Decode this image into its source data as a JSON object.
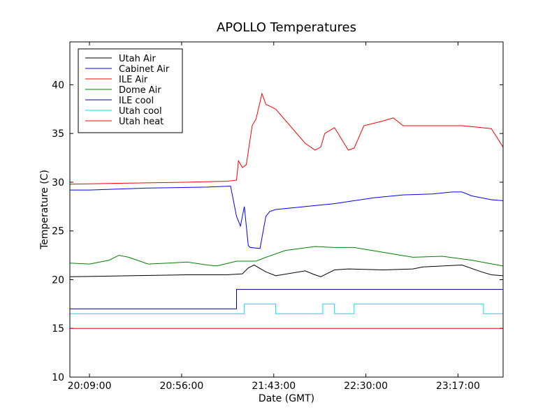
{
  "chart_data": {
    "type": "line",
    "title": "APOLLO Temperatures",
    "xlabel": "Date (GMT)",
    "ylabel": "Temperature (C)",
    "xlim": [
      -10,
      211
    ],
    "ylim": [
      10,
      44.4
    ],
    "yticks": [
      10,
      15,
      20,
      25,
      30,
      35,
      40
    ],
    "xticks": [
      {
        "pos": 0,
        "label": "20:09:00"
      },
      {
        "pos": 47,
        "label": "20:56:00"
      },
      {
        "pos": 94,
        "label": "21:43:00"
      },
      {
        "pos": 141,
        "label": "22:30:00"
      },
      {
        "pos": 188,
        "label": "23:17:00"
      }
    ],
    "legend_position": "top-left",
    "series": [
      {
        "name": "Utah Air",
        "color": "#000000",
        "x": [
          -10,
          20,
          50,
          70,
          78,
          81,
          84,
          90,
          95,
          110,
          115,
          118,
          121,
          125,
          132,
          150,
          165,
          170,
          180,
          190,
          200,
          205,
          211
        ],
        "y": [
          20.3,
          20.4,
          20.5,
          20.5,
          20.6,
          21.2,
          21.5,
          20.8,
          20.4,
          20.9,
          20.5,
          20.3,
          20.6,
          21.0,
          21.1,
          21.0,
          21.1,
          21.3,
          21.4,
          21.5,
          20.8,
          20.5,
          20.4
        ]
      },
      {
        "name": "Cabinet Air",
        "color": "#0000ff",
        "x": [
          -10,
          0,
          30,
          60,
          72,
          75,
          77,
          79,
          81,
          82,
          87,
          90,
          92,
          95,
          105,
          115,
          125,
          135,
          145,
          160,
          175,
          185,
          190,
          195,
          205,
          211
        ],
        "y": [
          29.2,
          29.2,
          29.4,
          29.5,
          29.6,
          26.5,
          25.5,
          27.5,
          23.5,
          23.3,
          23.2,
          26.5,
          27.0,
          27.2,
          27.4,
          27.6,
          27.8,
          28.1,
          28.4,
          28.7,
          28.8,
          29.0,
          29.0,
          28.6,
          28.2,
          28.1
        ]
      },
      {
        "name": "ILE Air",
        "color": "#ff0000",
        "x": [
          -10,
          20,
          50,
          70,
          75,
          76,
          78,
          80,
          83,
          85,
          88,
          90,
          95,
          110,
          115,
          118,
          120,
          125,
          132,
          135,
          140,
          150,
          155,
          160,
          190,
          200,
          205,
          211
        ],
        "y": [
          29.8,
          29.9,
          30.0,
          30.1,
          30.2,
          32.2,
          31.5,
          31.8,
          35.8,
          36.5,
          39.1,
          38.0,
          37.5,
          34.0,
          33.3,
          33.6,
          35.0,
          35.6,
          33.3,
          33.5,
          35.8,
          36.3,
          36.6,
          35.8,
          35.8,
          35.6,
          35.5,
          33.6
        ]
      },
      {
        "name": "Dome Air",
        "color": "#008000",
        "x": [
          -10,
          0,
          10,
          15,
          20,
          30,
          40,
          50,
          60,
          65,
          75,
          85,
          90,
          100,
          115,
          125,
          135,
          150,
          165,
          180,
          195,
          211
        ],
        "y": [
          21.7,
          21.6,
          22.0,
          22.5,
          22.3,
          21.6,
          21.7,
          21.8,
          21.5,
          21.4,
          21.9,
          21.9,
          22.3,
          23.0,
          23.4,
          23.3,
          23.3,
          22.8,
          22.3,
          22.4,
          22.0,
          21.4
        ]
      },
      {
        "name": "ILE cool",
        "color": "#00008b",
        "x": [
          -10,
          75,
          75,
          211
        ],
        "y": [
          17.0,
          17.0,
          19.0,
          19.0
        ]
      },
      {
        "name": "Utah cool",
        "color": "#00e5ee",
        "x": [
          -10,
          79,
          79,
          95,
          95,
          119,
          119,
          125,
          125,
          135,
          135,
          201,
          201,
          211
        ],
        "y": [
          16.5,
          16.5,
          17.5,
          17.5,
          16.5,
          16.5,
          17.5,
          17.5,
          16.5,
          16.5,
          17.5,
          17.5,
          16.5,
          16.5
        ]
      },
      {
        "name": "Utah heat",
        "color": "#ff0000",
        "x": [
          -10,
          211
        ],
        "y": [
          15.0,
          15.0
        ]
      }
    ]
  }
}
